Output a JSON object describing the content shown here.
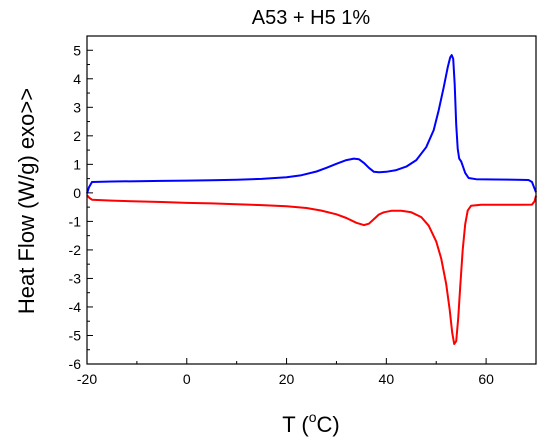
{
  "chart_data": {
    "type": "line",
    "title": "A53 + H5 1%",
    "xlabel": {
      "prefix": "T (",
      "superscript": "o",
      "suffix": "C)"
    },
    "ylabel": "Heat Flow (W/g)  exo>>",
    "xlim": [
      -20,
      70
    ],
    "ylim": [
      -6,
      5.5
    ],
    "xticks": [
      -20,
      0,
      20,
      40,
      60
    ],
    "yticks": [
      -6,
      -5,
      -4,
      -3,
      -2,
      -1,
      0,
      1,
      2,
      3,
      4,
      5
    ],
    "x_minor_step": 10,
    "y_minor_step": 0.5,
    "grid": false,
    "legend": "none",
    "series": [
      {
        "color": "#0000ff",
        "points": [
          [
            -20,
            -0.02
          ],
          [
            -19.6,
            0.2
          ],
          [
            -19,
            0.38
          ],
          [
            -15,
            0.4
          ],
          [
            -10,
            0.41
          ],
          [
            -5,
            0.42
          ],
          [
            0,
            0.43
          ],
          [
            5,
            0.44
          ],
          [
            10,
            0.46
          ],
          [
            15,
            0.49
          ],
          [
            20,
            0.55
          ],
          [
            23,
            0.62
          ],
          [
            26,
            0.75
          ],
          [
            28,
            0.88
          ],
          [
            30,
            1.02
          ],
          [
            32,
            1.15
          ],
          [
            33.5,
            1.2
          ],
          [
            34.5,
            1.18
          ],
          [
            35.5,
            1.05
          ],
          [
            36.5,
            0.88
          ],
          [
            37.5,
            0.74
          ],
          [
            38.5,
            0.72
          ],
          [
            40,
            0.74
          ],
          [
            42,
            0.8
          ],
          [
            44,
            0.92
          ],
          [
            46,
            1.15
          ],
          [
            48,
            1.6
          ],
          [
            49.5,
            2.2
          ],
          [
            50.5,
            2.9
          ],
          [
            51.5,
            3.7
          ],
          [
            52.3,
            4.4
          ],
          [
            52.8,
            4.75
          ],
          [
            53.1,
            4.83
          ],
          [
            53.4,
            4.7
          ],
          [
            53.7,
            3.8
          ],
          [
            54,
            2.4
          ],
          [
            54.3,
            1.55
          ],
          [
            54.6,
            1.2
          ],
          [
            55,
            1.1
          ],
          [
            55.4,
            0.9
          ],
          [
            55.8,
            0.7
          ],
          [
            56.5,
            0.52
          ],
          [
            58,
            0.48
          ],
          [
            62,
            0.47
          ],
          [
            66,
            0.46
          ],
          [
            68.5,
            0.45
          ],
          [
            69.2,
            0.38
          ],
          [
            69.6,
            0.2
          ],
          [
            70,
            0.02
          ]
        ]
      },
      {
        "color": "#ff0000",
        "points": [
          [
            -20,
            -0.08
          ],
          [
            -19.5,
            -0.18
          ],
          [
            -19,
            -0.24
          ],
          [
            -15,
            -0.27
          ],
          [
            -10,
            -0.3
          ],
          [
            -5,
            -0.32
          ],
          [
            0,
            -0.35
          ],
          [
            5,
            -0.37
          ],
          [
            10,
            -0.4
          ],
          [
            15,
            -0.43
          ],
          [
            20,
            -0.47
          ],
          [
            24,
            -0.53
          ],
          [
            27,
            -0.62
          ],
          [
            30,
            -0.75
          ],
          [
            32,
            -0.88
          ],
          [
            34,
            -1.05
          ],
          [
            35.5,
            -1.13
          ],
          [
            36.5,
            -1.08
          ],
          [
            37.5,
            -0.92
          ],
          [
            38.5,
            -0.76
          ],
          [
            39.5,
            -0.68
          ],
          [
            41,
            -0.63
          ],
          [
            43,
            -0.63
          ],
          [
            45,
            -0.68
          ],
          [
            47,
            -0.85
          ],
          [
            48.5,
            -1.15
          ],
          [
            50,
            -1.7
          ],
          [
            51,
            -2.3
          ],
          [
            52,
            -3.2
          ],
          [
            52.7,
            -4.1
          ],
          [
            53.2,
            -4.9
          ],
          [
            53.6,
            -5.3
          ],
          [
            54,
            -5.2
          ],
          [
            54.4,
            -4.4
          ],
          [
            54.8,
            -3.3
          ],
          [
            55.3,
            -2.0
          ],
          [
            55.8,
            -1.1
          ],
          [
            56.3,
            -0.62
          ],
          [
            57,
            -0.45
          ],
          [
            59,
            -0.42
          ],
          [
            63,
            -0.42
          ],
          [
            67,
            -0.42
          ],
          [
            69.2,
            -0.41
          ],
          [
            69.7,
            -0.3
          ],
          [
            70,
            -0.1
          ]
        ]
      }
    ]
  }
}
